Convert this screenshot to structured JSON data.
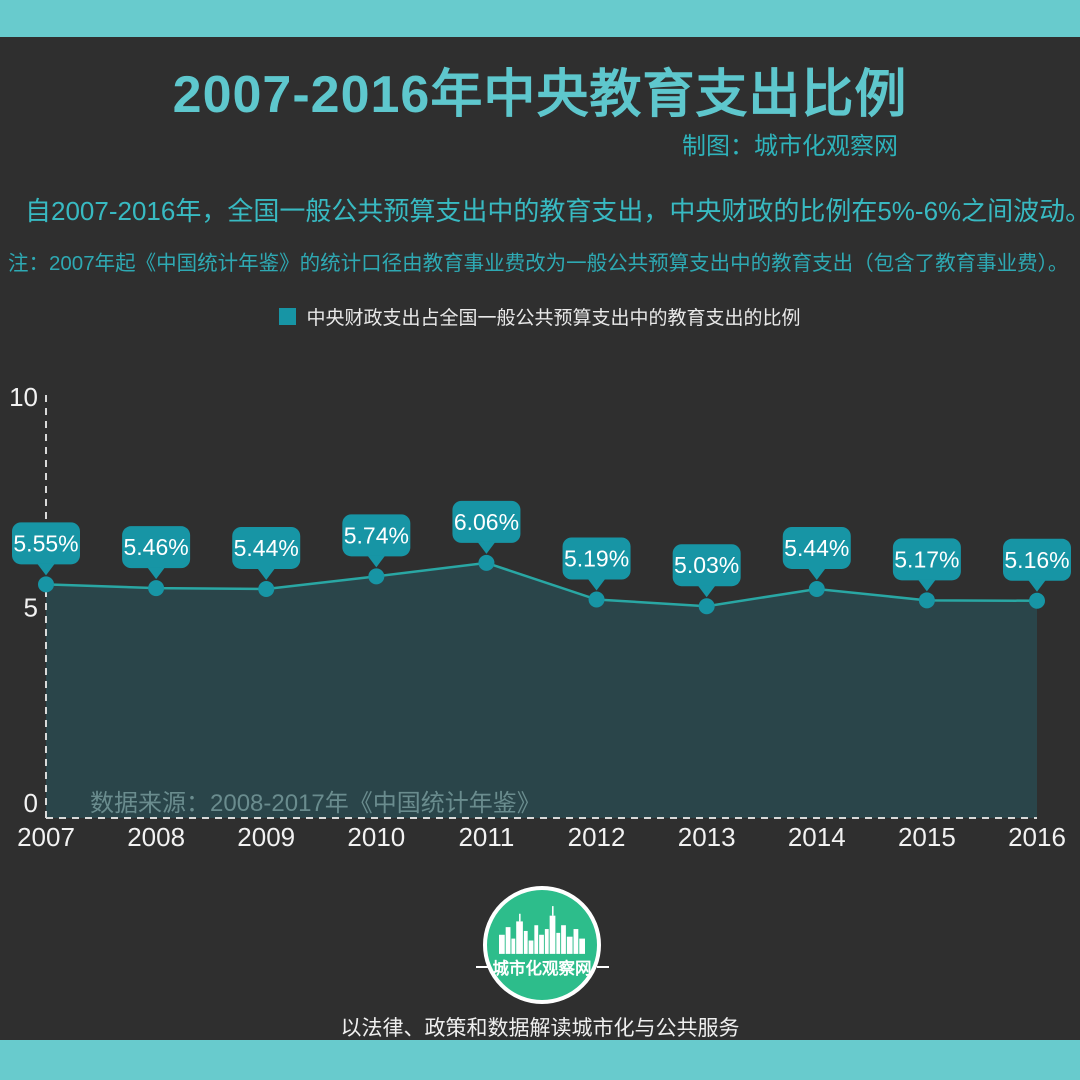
{
  "header": {
    "title": "2007-2016年中央教育支出比例",
    "credit": "制图：城市化观察网"
  },
  "intro": {
    "summary": "自2007-2016年，全国一般公共预算支出中的教育支出，中央财政的比例在5%-6%之间波动。",
    "note": "注：2007年起《中国统计年鉴》的统计口径由教育事业费改为一般公共预算支出中的教育支出（包含了教育事业费）。"
  },
  "chart_data": {
    "type": "area",
    "title": "2007-2016年中央教育支出比例",
    "categories": [
      "2007",
      "2008",
      "2009",
      "2010",
      "2011",
      "2012",
      "2013",
      "2014",
      "2015",
      "2016"
    ],
    "values": [
      5.55,
      5.46,
      5.44,
      5.74,
      6.06,
      5.19,
      5.03,
      5.44,
      5.17,
      5.16
    ],
    "point_labels": [
      "5.55%",
      "5.46%",
      "5.44%",
      "5.74%",
      "6.06%",
      "5.19%",
      "5.03%",
      "5.44%",
      "5.17%",
      "5.16%"
    ],
    "legend": [
      "中央财政支出占全国一般公共预算支出中的教育支出的比例"
    ],
    "legend_position": "top",
    "xlabel": "",
    "ylabel": "",
    "ylim": [
      0,
      10
    ],
    "yticks": [
      0,
      5,
      10
    ],
    "grid": false,
    "unit": "%",
    "source": "数据来源：2008-2017年《中国统计年鉴》"
  },
  "footer": {
    "logo_text": "城市化观察网",
    "tagline": "以法律、政策和数据解读城市化与公共服务"
  },
  "colors": {
    "background": "#2F2F2F",
    "accent_band": "#68CBCD",
    "title": "#5EC7CD",
    "credit": "#2FB3BB",
    "summary": "#38BAC2",
    "note": "#2EA9B3",
    "legend_text": "#E9E9E9",
    "bubble": "#1795A5",
    "bubble_text": "#FFFFFF",
    "line": "#29A7A4",
    "area_fill": "#2A454A",
    "source_text": "#6A8C8E",
    "axis": "#D9D9D9",
    "axis_label": "#F2F2F2",
    "logo_green": "#2DBD8B"
  }
}
